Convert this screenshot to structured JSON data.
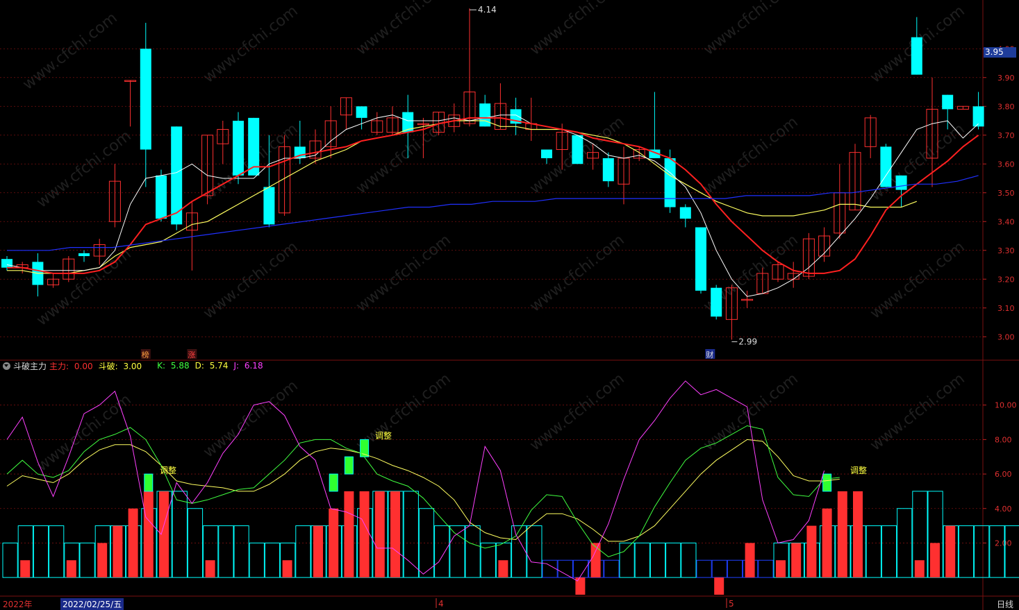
{
  "watermark": "www.cfchi.com",
  "price": {
    "current_tag": "3.95",
    "axis_ticks": [
      "4.00",
      "3.90",
      "3.80",
      "3.70",
      "3.60",
      "3.50",
      "3.40",
      "3.30",
      "3.20",
      "3.10",
      "3.00"
    ],
    "high_label": "4.14",
    "low_label": "2.99",
    "markers": [
      "榜",
      "涨",
      "财"
    ]
  },
  "indicator": {
    "name": "斗破主力",
    "main_label": "主力: ",
    "main_value": "0.00",
    "doupo_label": "斗破: ",
    "doupo_value": "3.00",
    "k_label": "K: ",
    "k_value": "5.88",
    "d_label": "D: ",
    "d_value": "5.74",
    "j_label": "J: ",
    "j_value": "6.18",
    "axis_ticks": [
      "10.00",
      "8.00",
      "6.00",
      "4.00",
      "2.00"
    ],
    "annotations": [
      "调整",
      "调整",
      "调整"
    ]
  },
  "footer": {
    "year_label": "2022年",
    "cursor_date": "2022/02/25/五",
    "month_labels": [
      "4",
      "5"
    ],
    "period": "日线"
  },
  "colors": {
    "up": "#ff3030",
    "down": "#00ffff",
    "ma5": "#ffffff",
    "ma10": "#ff2020",
    "ma20": "#ffff60",
    "ma60": "#2030ff",
    "k": "#40ff40",
    "d": "#ffff60",
    "j": "#ff40ff",
    "grid": "#7a1010"
  },
  "chart_data": [
    {
      "type": "candlestick",
      "ylim": [
        2.95,
        4.15
      ],
      "candles": [
        [
          3.27,
          3.24,
          3.28,
          3.23
        ],
        [
          3.24,
          3.25,
          3.26,
          3.22
        ],
        [
          3.26,
          3.18,
          3.29,
          3.14
        ],
        [
          3.18,
          3.2,
          3.22,
          3.17
        ],
        [
          3.2,
          3.27,
          3.28,
          3.19
        ],
        [
          3.29,
          3.28,
          3.3,
          3.26
        ],
        [
          3.28,
          3.32,
          3.34,
          3.25
        ],
        [
          3.4,
          3.54,
          3.6,
          3.38
        ],
        [
          3.89,
          3.89,
          3.89,
          3.73
        ],
        [
          4.0,
          3.65,
          4.09,
          3.52
        ],
        [
          3.56,
          3.41,
          3.58,
          3.4
        ],
        [
          3.73,
          3.39,
          3.73,
          3.37
        ],
        [
          3.37,
          3.43,
          3.47,
          3.23
        ],
        [
          3.49,
          3.7,
          3.7,
          3.46
        ],
        [
          3.67,
          3.72,
          3.75,
          3.6
        ],
        [
          3.75,
          3.56,
          3.78,
          3.53
        ],
        [
          3.76,
          3.56,
          3.76,
          3.56
        ],
        [
          3.52,
          3.39,
          3.7,
          3.38
        ],
        [
          3.43,
          3.66,
          3.7,
          3.42
        ],
        [
          3.66,
          3.62,
          3.75,
          3.6
        ],
        [
          3.62,
          3.68,
          3.72,
          3.6
        ],
        [
          3.66,
          3.75,
          3.8,
          3.62
        ],
        [
          3.77,
          3.83,
          3.83,
          3.72
        ],
        [
          3.8,
          3.76,
          3.8,
          3.72
        ],
        [
          3.71,
          3.75,
          3.78,
          3.7
        ],
        [
          3.71,
          3.76,
          3.8,
          3.7
        ],
        [
          3.78,
          3.71,
          3.84,
          3.62
        ],
        [
          3.74,
          3.74,
          3.76,
          3.62
        ],
        [
          3.71,
          3.78,
          3.78,
          3.7
        ],
        [
          3.73,
          3.77,
          3.81,
          3.71
        ],
        [
          3.74,
          3.85,
          4.14,
          3.73
        ],
        [
          3.81,
          3.73,
          3.84,
          3.73
        ],
        [
          3.72,
          3.81,
          3.88,
          3.72
        ],
        [
          3.79,
          3.74,
          3.83,
          3.7
        ],
        [
          3.72,
          3.74,
          3.83,
          3.68
        ],
        [
          3.65,
          3.62,
          3.65,
          3.6
        ],
        [
          3.65,
          3.71,
          3.74,
          3.58
        ],
        [
          3.7,
          3.6,
          3.7,
          3.6
        ],
        [
          3.62,
          3.64,
          3.67,
          3.58
        ],
        [
          3.62,
          3.54,
          3.64,
          3.52
        ],
        [
          3.53,
          3.62,
          3.66,
          3.46
        ],
        [
          3.62,
          3.65,
          3.66,
          3.61
        ],
        [
          3.65,
          3.62,
          3.85,
          3.62
        ],
        [
          3.62,
          3.45,
          3.65,
          3.43
        ],
        [
          3.45,
          3.41,
          3.46,
          3.38
        ],
        [
          3.38,
          3.16,
          3.38,
          3.15
        ],
        [
          3.17,
          3.07,
          3.18,
          3.06
        ],
        [
          3.06,
          3.17,
          3.18,
          2.99
        ],
        [
          3.13,
          3.13,
          3.16,
          3.1
        ],
        [
          3.15,
          3.22,
          3.24,
          3.15
        ],
        [
          3.2,
          3.25,
          3.26,
          3.19
        ],
        [
          3.2,
          3.22,
          3.26,
          3.17
        ],
        [
          3.21,
          3.34,
          3.36,
          3.2
        ],
        [
          3.28,
          3.35,
          3.38,
          3.26
        ],
        [
          3.36,
          3.5,
          3.6,
          3.34
        ],
        [
          3.44,
          3.64,
          3.67,
          3.44
        ],
        [
          3.66,
          3.76,
          3.77,
          3.62
        ],
        [
          3.66,
          3.52,
          3.67,
          3.52
        ],
        [
          3.56,
          3.51,
          3.56,
          3.45
        ],
        [
          4.04,
          3.91,
          4.11,
          3.91
        ],
        [
          3.62,
          3.79,
          3.9,
          3.52
        ],
        [
          3.84,
          3.79,
          3.84,
          3.72
        ],
        [
          3.79,
          3.8,
          3.8,
          3.79
        ],
        [
          3.8,
          3.73,
          3.85,
          3.72
        ]
      ],
      "ma5": [
        3.25,
        3.24,
        3.23,
        3.23,
        3.23,
        3.23,
        3.24,
        3.3,
        3.46,
        3.55,
        3.56,
        3.57,
        3.6,
        3.56,
        3.55,
        3.55,
        3.55,
        3.6,
        3.62,
        3.62,
        3.63,
        3.68,
        3.72,
        3.74,
        3.76,
        3.77,
        3.75,
        3.75,
        3.75,
        3.76,
        3.75,
        3.76,
        3.77,
        3.77,
        3.74,
        3.73,
        3.72,
        3.7,
        3.67,
        3.63,
        3.62,
        3.63,
        3.61,
        3.57,
        3.52,
        3.43,
        3.3,
        3.2,
        3.14,
        3.15,
        3.17,
        3.2,
        3.24,
        3.29,
        3.35,
        3.41,
        3.48,
        3.56,
        3.64,
        3.72,
        3.74,
        3.75,
        3.69,
        3.74
      ],
      "ma10": [
        3.24,
        3.24,
        3.23,
        3.22,
        3.22,
        3.22,
        3.23,
        3.26,
        3.32,
        3.39,
        3.41,
        3.43,
        3.47,
        3.5,
        3.53,
        3.56,
        3.59,
        3.59,
        3.61,
        3.63,
        3.64,
        3.65,
        3.66,
        3.68,
        3.69,
        3.7,
        3.71,
        3.72,
        3.74,
        3.75,
        3.76,
        3.76,
        3.76,
        3.75,
        3.74,
        3.73,
        3.72,
        3.71,
        3.69,
        3.68,
        3.67,
        3.66,
        3.64,
        3.62,
        3.58,
        3.53,
        3.46,
        3.4,
        3.35,
        3.3,
        3.26,
        3.23,
        3.22,
        3.22,
        3.23,
        3.27,
        3.35,
        3.44,
        3.49,
        3.53,
        3.57,
        3.61,
        3.66,
        3.7
      ],
      "ma20": [
        3.23,
        3.23,
        3.22,
        3.22,
        3.22,
        3.23,
        3.24,
        3.28,
        3.31,
        3.32,
        3.33,
        3.36,
        3.39,
        3.4,
        3.43,
        3.46,
        3.49,
        3.52,
        3.55,
        3.58,
        3.61,
        3.63,
        3.65,
        3.68,
        3.69,
        3.7,
        3.72,
        3.73,
        3.74,
        3.75,
        3.75,
        3.75,
        3.73,
        3.73,
        3.72,
        3.72,
        3.72,
        3.71,
        3.7,
        3.69,
        3.67,
        3.64,
        3.6,
        3.56,
        3.53,
        3.5,
        3.47,
        3.45,
        3.43,
        3.42,
        3.42,
        3.42,
        3.43,
        3.44,
        3.46,
        3.46,
        3.45,
        3.45,
        3.45,
        3.47
      ],
      "ma60": [
        3.3,
        3.3,
        3.3,
        3.31,
        3.31,
        3.31,
        3.32,
        3.33,
        3.34,
        3.35,
        3.36,
        3.37,
        3.38,
        3.39,
        3.4,
        3.41,
        3.42,
        3.43,
        3.44,
        3.45,
        3.45,
        3.46,
        3.46,
        3.47,
        3.47,
        3.47,
        3.48,
        3.48,
        3.48,
        3.48,
        3.48,
        3.48,
        3.48,
        3.48,
        3.48,
        3.49,
        3.49,
        3.49,
        3.49,
        3.5,
        3.5,
        3.51,
        3.52,
        3.53,
        3.53,
        3.54,
        3.56
      ],
      "ma20_start": 0,
      "ma60_x": [
        0,
        5,
        10,
        15,
        20,
        25,
        30,
        35,
        40,
        45,
        50,
        55,
        60,
        63
      ]
    },
    {
      "type": "bar+line",
      "ylim": [
        -0.8,
        12.0
      ],
      "doupo": [
        2,
        3,
        3,
        3,
        2,
        2,
        3,
        3,
        3,
        4,
        5,
        5,
        4,
        3,
        3,
        3,
        2,
        2,
        2,
        3,
        3,
        3,
        3,
        4,
        5,
        5,
        5,
        4,
        3,
        3,
        3,
        2,
        2,
        3,
        3,
        1,
        1,
        1,
        1,
        1,
        2,
        2,
        2,
        2,
        2,
        1,
        1,
        1,
        1,
        1,
        2,
        2,
        2,
        3,
        3,
        3,
        3,
        3,
        4,
        5,
        5,
        3,
        3,
        3,
        3,
        3
      ],
      "main": [
        0,
        1,
        0,
        0,
        1,
        0,
        2,
        3,
        4,
        5,
        5,
        0,
        0,
        1,
        0,
        0,
        0,
        0,
        1,
        0,
        3,
        4,
        5,
        5,
        5,
        5,
        0,
        0,
        0,
        0,
        0,
        0,
        1,
        0,
        0,
        0,
        0,
        -1,
        2,
        0,
        0,
        0,
        0,
        0,
        0,
        0,
        -1,
        0,
        2,
        0,
        1,
        2,
        3,
        4,
        5,
        5,
        0,
        0,
        0,
        1,
        2,
        3,
        0
      ],
      "green": [
        [
          9,
          6
        ],
        [
          21,
          6
        ],
        [
          22,
          7
        ],
        [
          23,
          8
        ],
        [
          53,
          6
        ]
      ],
      "k": [
        6.0,
        6.8,
        6.0,
        5.8,
        6.2,
        7.3,
        8.0,
        8.3,
        8.7,
        8.0,
        6.5,
        4.5,
        4.3,
        4.5,
        4.8,
        5.1,
        5.2,
        6.0,
        6.8,
        7.8,
        8.0,
        8.0,
        7.5,
        7.2,
        6.0,
        5.6,
        5.3,
        4.6,
        3.6,
        2.6,
        2.0,
        1.7,
        1.9,
        2.4,
        3.9,
        4.8,
        4.7,
        3.2,
        1.9,
        1.2,
        1.5,
        2.4,
        4.1,
        5.5,
        6.8,
        7.5,
        7.8,
        8.3,
        8.8,
        8.6,
        5.8,
        4.8,
        4.7,
        5.7,
        5.8
      ],
      "d": [
        5.3,
        5.9,
        5.7,
        5.5,
        6.0,
        6.8,
        7.4,
        7.7,
        7.7,
        7.3,
        6.5,
        5.6,
        5.4,
        5.3,
        5.2,
        5.0,
        5.0,
        5.4,
        6.0,
        6.8,
        7.3,
        7.5,
        7.4,
        7.2,
        6.9,
        6.5,
        6.2,
        5.8,
        5.3,
        4.5,
        3.2,
        2.6,
        2.3,
        2.2,
        3.0,
        3.7,
        3.7,
        3.4,
        2.8,
        2.1,
        2.1,
        2.4,
        3.0,
        4.0,
        5.0,
        6.0,
        6.8,
        7.4,
        8.0,
        7.9,
        7.0,
        5.9,
        5.6,
        5.6,
        5.7
      ],
      "j": [
        8.0,
        9.3,
        6.7,
        4.7,
        7.0,
        9.5,
        10.0,
        10.8,
        8.2,
        3.5,
        2.5,
        5.5,
        4.3,
        5.5,
        7.2,
        8.3,
        10.0,
        10.2,
        9.4,
        7.6,
        6.8,
        4.0,
        3.8,
        3.4,
        1.7,
        1.7,
        1.0,
        0.2,
        0.9,
        2.4,
        3.0,
        7.6,
        6.2,
        2.5,
        0.9,
        0.8,
        0.3,
        -0.2,
        1.2,
        3.1,
        5.7,
        8.0,
        9.1,
        10.4,
        11.4,
        10.6,
        10.9,
        10.4,
        9.9,
        4.5,
        2.0,
        2.2,
        3.3,
        6.2
      ]
    }
  ]
}
